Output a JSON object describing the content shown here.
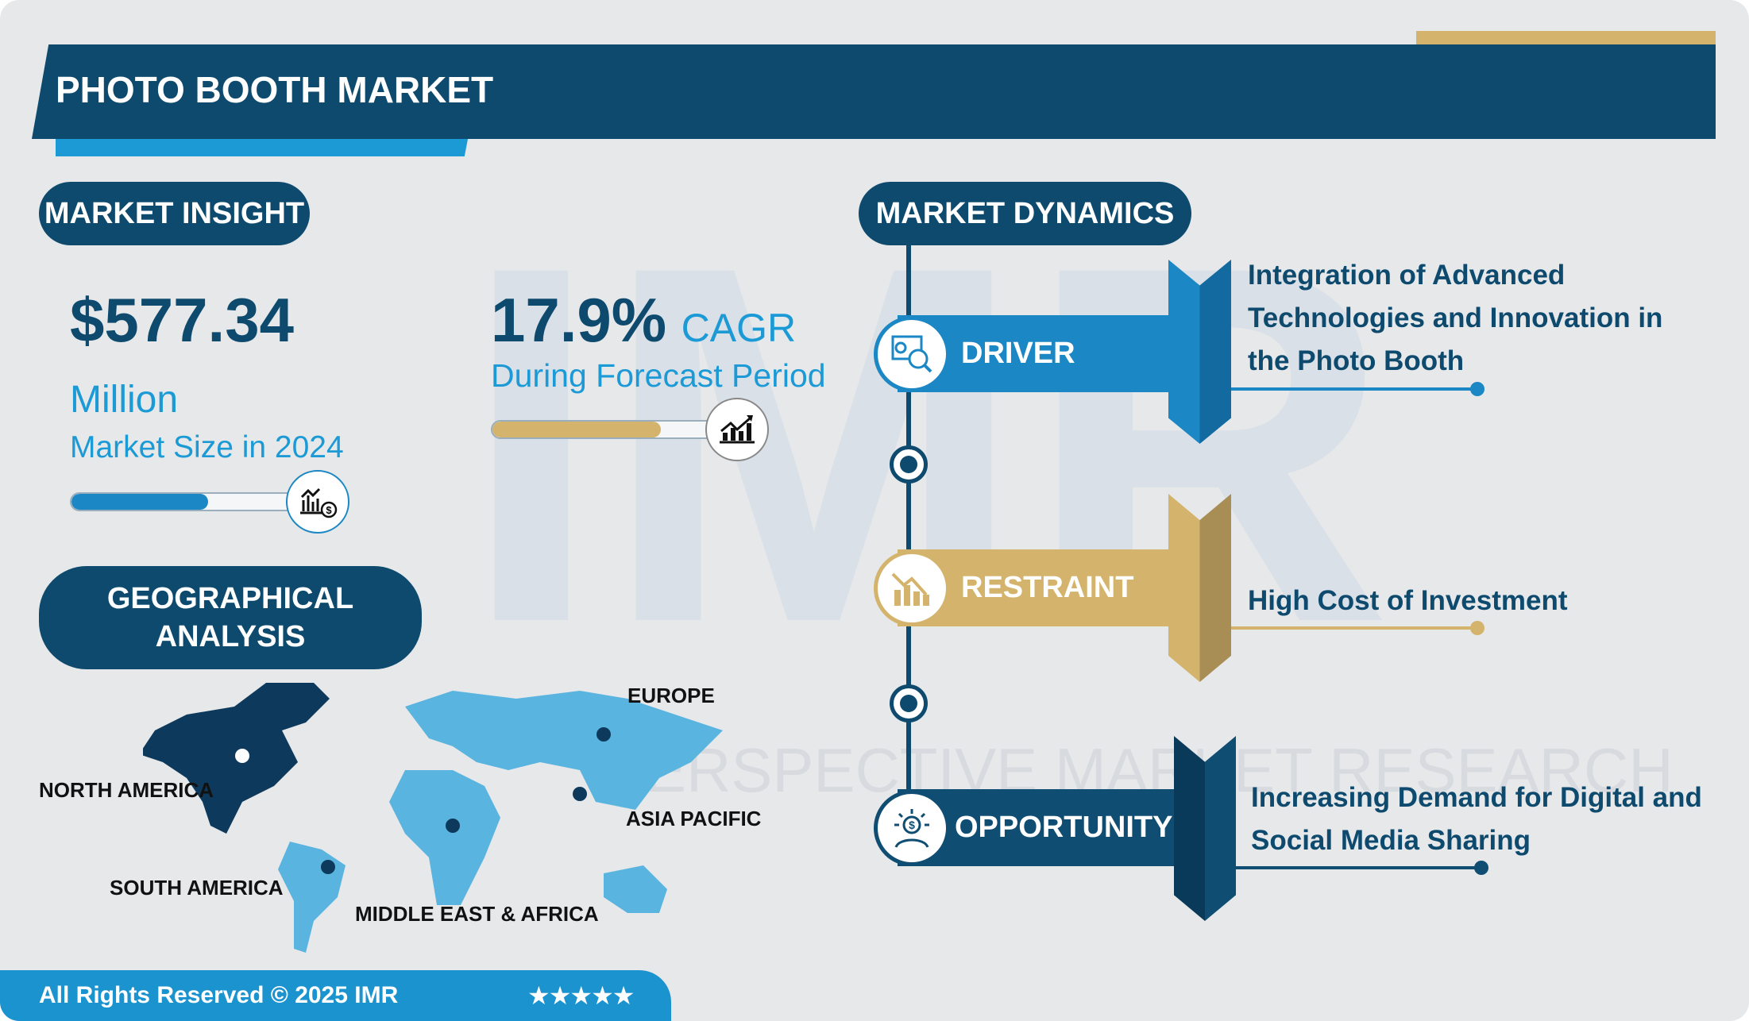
{
  "header": {
    "title": "PHOTO BOOTH MARKET"
  },
  "watermark": {
    "logo": "IMR",
    "text": "PERSPECTIVE MARKET RESEARCH"
  },
  "insight": {
    "heading": "MARKET INSIGHT",
    "market_size": "$577.34",
    "unit": "Million",
    "size_label": "Market Size in 2024",
    "size_progress_pct": 60,
    "cagr": "17.9%",
    "cagr_label": "CAGR",
    "cagr_period": "During Forecast Period",
    "cagr_progress_pct": 74
  },
  "geo": {
    "heading_line1": "GEOGRAPHICAL",
    "heading_line2": "ANALYSIS",
    "regions": [
      "NORTH AMERICA",
      "SOUTH AMERICA",
      "MIDDLE EAST & AFRICA",
      "EUROPE",
      "ASIA PACIFIC"
    ]
  },
  "dynamics": {
    "heading": "MARKET DYNAMICS",
    "items": [
      {
        "label": "DRIVER",
        "lines": [
          "Integration of Advanced",
          "Technologies and Innovation in",
          "the Photo Booth"
        ],
        "color": "#1b87c4",
        "dark": "#126aa0",
        "icon": "analytics-icon"
      },
      {
        "label": "RESTRAINT",
        "lines": [
          "High Cost of Investment"
        ],
        "color": "#d4b46c",
        "dark": "#a88d55",
        "icon": "declining-chart-icon"
      },
      {
        "label": "OPPORTUNITY",
        "lines": [
          "Increasing Demand for Digital and",
          "Social Media Sharing"
        ],
        "color": "#0f4d73",
        "dark": "#0a3a5a",
        "icon": "idea-dollar-icon"
      }
    ]
  },
  "footer": {
    "copyright": "All Rights Reserved © 2025 IMR",
    "stars": "★★★★★",
    "rating": 5
  },
  "colors": {
    "navy": "#0d4a6e",
    "blue": "#1b87c4",
    "gold": "#d4b46c",
    "map_light": "#5ab4e0",
    "map_dark": "#0d3a5c"
  }
}
